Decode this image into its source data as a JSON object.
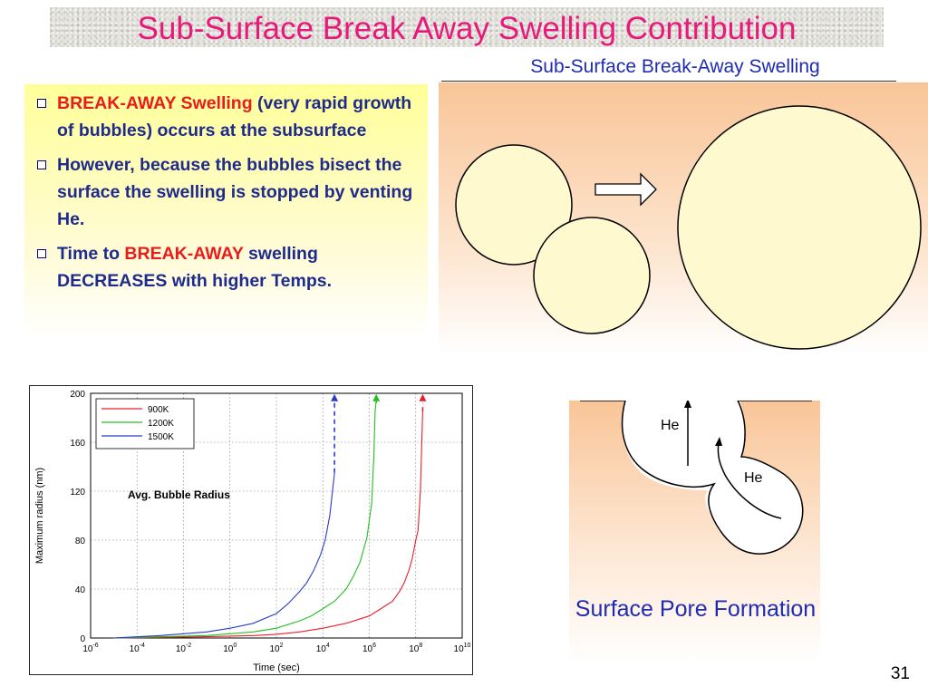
{
  "title": "Sub-Surface Break Away Swelling Contribution",
  "bullets": [
    {
      "parts": [
        {
          "text": "BREAK-AWAY Swelling",
          "red": true
        },
        {
          "text": " (very rapid growth of bubbles) occurs at the subsurface",
          "red": false
        }
      ]
    },
    {
      "parts": [
        {
          "text": "However, because the bubbles bisect the surface the swelling is stopped by venting He.",
          "red": false
        }
      ]
    },
    {
      "parts": [
        {
          "text": "Time to ",
          "red": false
        },
        {
          "text": "BREAK-AWAY",
          "red": true
        },
        {
          "text": " swelling DECREASES with higher Temps.",
          "red": false
        }
      ]
    }
  ],
  "subsurface": {
    "label": "Sub-Surface Break-Away Swelling"
  },
  "pore": {
    "label": "Surface Pore Formation",
    "he_label_1": "He",
    "he_label_2": "He"
  },
  "page_number": "31",
  "colors": {
    "title": "#e8197a",
    "body_text": "#1f2b8a",
    "highlight": "#e81c1c"
  },
  "chart_data": {
    "type": "line",
    "xlabel": "Time (sec)",
    "ylabel": "Maximum radius (nm)",
    "annotation": "Avg. Bubble Radius",
    "x_scale": "log",
    "xlim_exp": [
      -6,
      10
    ],
    "ylim": [
      0,
      200
    ],
    "x_ticks_exp": [
      -6,
      -4,
      -2,
      0,
      2,
      4,
      6,
      8,
      10
    ],
    "y_ticks": [
      0,
      40,
      80,
      120,
      160,
      200
    ],
    "grid": true,
    "legend_position": "top-left",
    "series": [
      {
        "name": "900K",
        "color": "#e8202a",
        "log10_t": [
          -5,
          -3,
          -1,
          1,
          2,
          3,
          4,
          5,
          6,
          6.5,
          7,
          7.3,
          7.5,
          7.7,
          7.85,
          8.0,
          8.1,
          8.2,
          8.3
        ],
        "r": [
          0,
          0.5,
          1,
          2,
          3,
          5,
          8,
          12,
          18,
          24,
          30,
          38,
          45,
          55,
          65,
          80,
          88,
          120,
          185
        ],
        "breakaway": true
      },
      {
        "name": "1200K",
        "color": "#22c022",
        "log10_t": [
          -5,
          -3,
          -1,
          1,
          2,
          3,
          3.5,
          4,
          4.5,
          5,
          5.3,
          5.6,
          5.9,
          6.1,
          6.2,
          6.25,
          6.3
        ],
        "r": [
          0,
          1,
          2,
          5,
          8,
          14,
          18,
          24,
          30,
          40,
          50,
          62,
          82,
          110,
          150,
          185,
          195
        ],
        "breakaway": true
      },
      {
        "name": "1500K",
        "color": "#2a3cc8",
        "log10_t": [
          -5,
          -3,
          -1,
          0,
          1,
          2,
          2.5,
          3,
          3.3,
          3.6,
          3.9,
          4.1,
          4.3,
          4.5
        ],
        "r": [
          0,
          2,
          5,
          8,
          12,
          20,
          28,
          38,
          45,
          55,
          68,
          80,
          100,
          135
        ],
        "breakaway": true
      }
    ]
  }
}
